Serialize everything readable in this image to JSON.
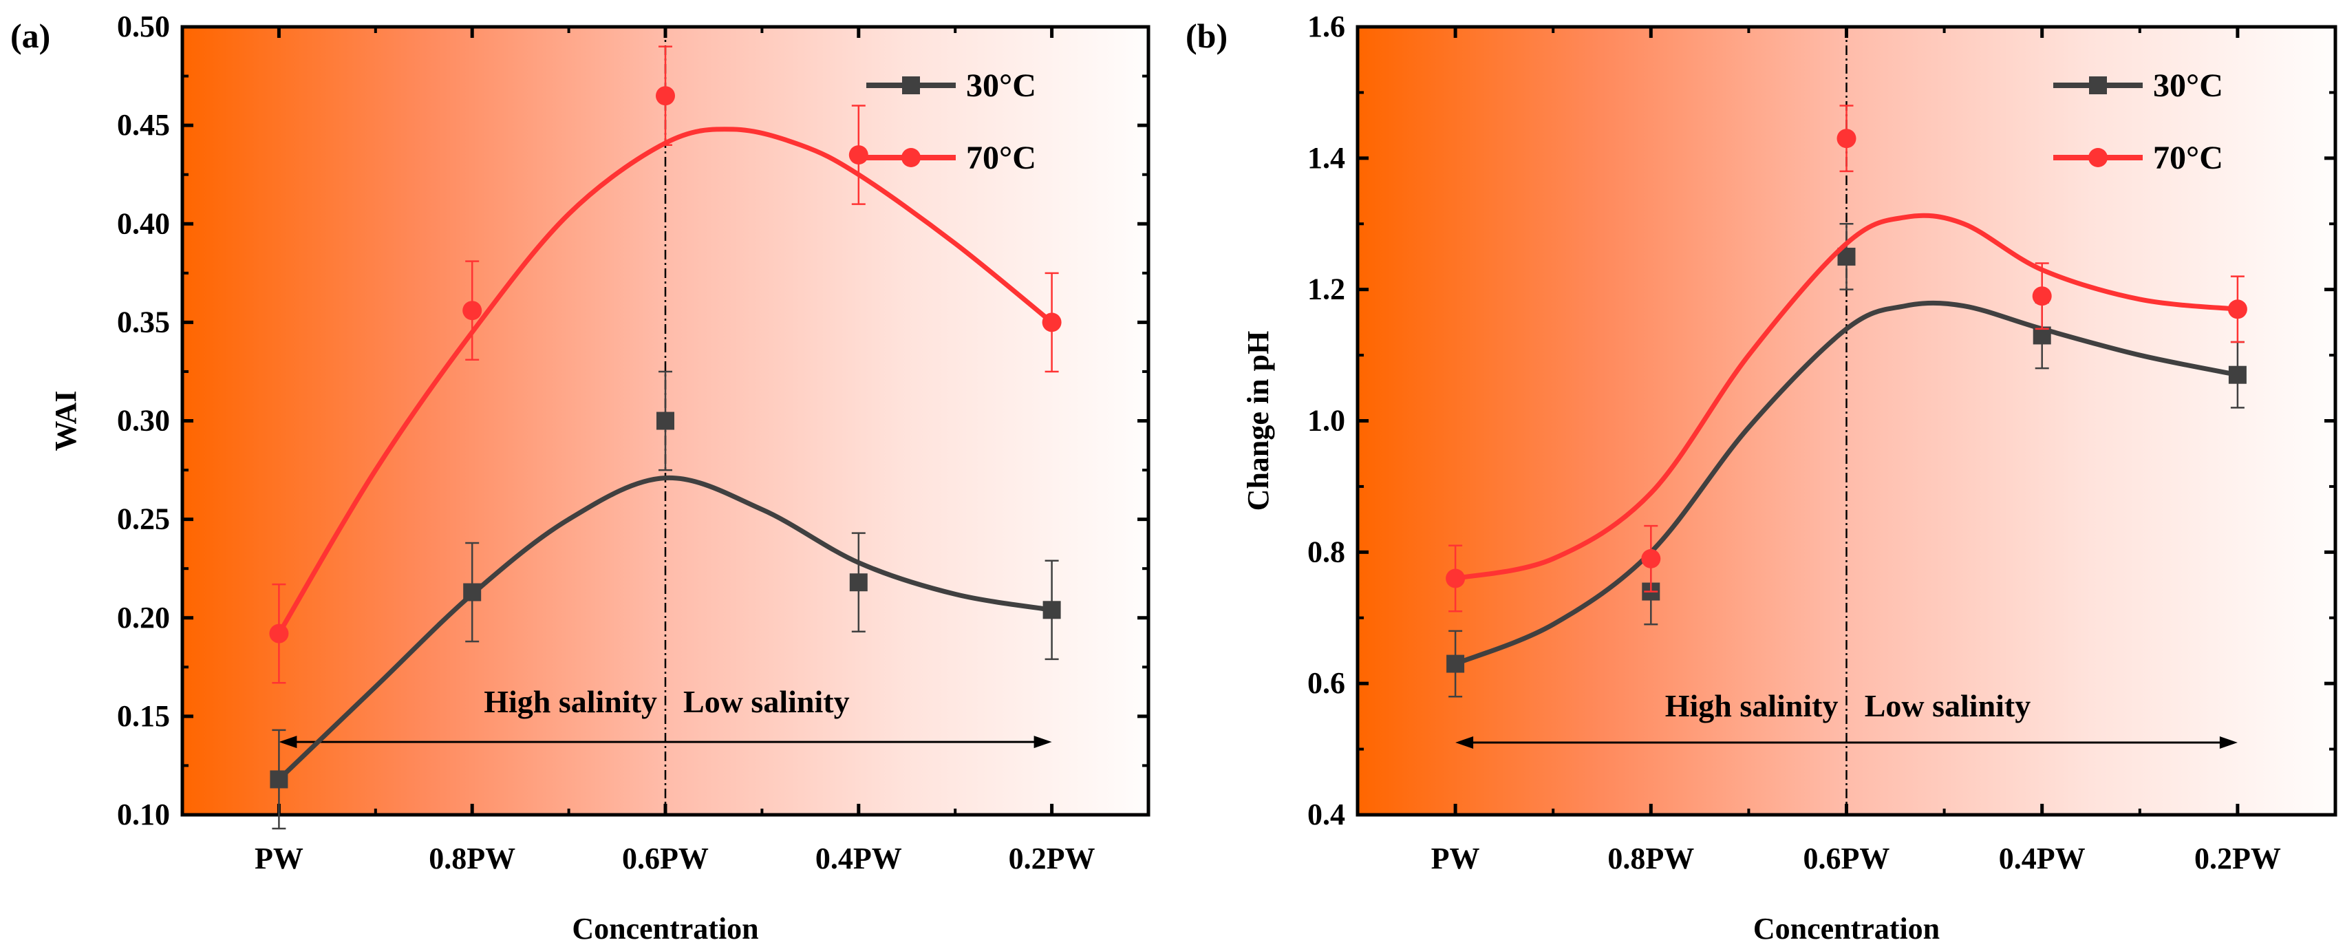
{
  "chart_data": [
    {
      "type": "line",
      "panel_label": "(a)",
      "xlabel": "Concentration",
      "ylabel": "WAI",
      "categories": [
        "PW",
        "0.8PW",
        "0.6PW",
        "0.4PW",
        "0.2PW"
      ],
      "ylim": [
        0.1,
        0.5
      ],
      "yticks": [
        "0.10",
        "0.15",
        "0.20",
        "0.25",
        "0.30",
        "0.35",
        "0.40",
        "0.45",
        "0.50"
      ],
      "legend_position": "top-right",
      "divider_at": "0.6PW",
      "annotations": {
        "left": "High salinity",
        "right": "Low salinity",
        "arrow_y": 0.137,
        "label_y": 0.152
      },
      "series": [
        {
          "name": "30°C",
          "color": "#404040",
          "marker": "square",
          "values": [
            0.118,
            0.213,
            0.3,
            0.218,
            0.204
          ],
          "errors": [
            0.025,
            0.025,
            0.025,
            0.025,
            0.025
          ],
          "fit": [
            [
              0,
              0.118
            ],
            [
              0.5,
              0.165
            ],
            [
              1,
              0.212
            ],
            [
              1.5,
              0.25
            ],
            [
              2,
              0.271
            ],
            [
              2.5,
              0.255
            ],
            [
              3,
              0.228
            ],
            [
              3.5,
              0.212
            ],
            [
              4,
              0.204
            ]
          ]
        },
        {
          "name": "70°C",
          "color": "#ff3333",
          "marker": "circle",
          "values": [
            0.192,
            0.356,
            0.465,
            0.435,
            0.35
          ],
          "errors": [
            0.025,
            0.025,
            0.025,
            0.025,
            0.025
          ],
          "fit": [
            [
              0,
              0.192
            ],
            [
              0.5,
              0.275
            ],
            [
              1,
              0.345
            ],
            [
              1.5,
              0.405
            ],
            [
              2,
              0.441
            ],
            [
              2.35,
              0.448
            ],
            [
              2.7,
              0.44
            ],
            [
              3,
              0.425
            ],
            [
              3.5,
              0.39
            ],
            [
              4,
              0.35
            ]
          ]
        }
      ]
    },
    {
      "type": "line",
      "panel_label": "(b)",
      "xlabel": "Concentration",
      "ylabel": "Change in pH",
      "categories": [
        "PW",
        "0.8PW",
        "0.6PW",
        "0.4PW",
        "0.2PW"
      ],
      "ylim": [
        0.4,
        1.6
      ],
      "yticks": [
        "0.4",
        "0.6",
        "0.8",
        "1.0",
        "1.2",
        "1.4",
        "1.6"
      ],
      "legend_position": "top-right",
      "divider_at": "0.6PW",
      "annotations": {
        "left": "High salinity",
        "right": "Low salinity",
        "arrow_y": 0.51,
        "label_y": 0.55
      },
      "series": [
        {
          "name": "30°C",
          "color": "#404040",
          "marker": "square",
          "values": [
            0.63,
            0.74,
            1.25,
            1.13,
            1.07
          ],
          "errors": [
            0.05,
            0.05,
            0.05,
            0.05,
            0.05
          ],
          "fit": [
            [
              0,
              0.63
            ],
            [
              0.5,
              0.69
            ],
            [
              1,
              0.8
            ],
            [
              1.5,
              0.99
            ],
            [
              2,
              1.14
            ],
            [
              2.3,
              1.175
            ],
            [
              2.6,
              1.175
            ],
            [
              3,
              1.14
            ],
            [
              3.5,
              1.1
            ],
            [
              4,
              1.07
            ]
          ]
        },
        {
          "name": "70°C",
          "color": "#ff3333",
          "marker": "circle",
          "values": [
            0.76,
            0.79,
            1.43,
            1.19,
            1.17
          ],
          "errors": [
            0.05,
            0.05,
            0.05,
            0.05,
            0.05
          ],
          "fit": [
            [
              0,
              0.76
            ],
            [
              0.5,
              0.79
            ],
            [
              1,
              0.89
            ],
            [
              1.5,
              1.1
            ],
            [
              2,
              1.27
            ],
            [
              2.3,
              1.31
            ],
            [
              2.6,
              1.3
            ],
            [
              3,
              1.23
            ],
            [
              3.5,
              1.185
            ],
            [
              4,
              1.17
            ]
          ]
        }
      ]
    }
  ]
}
